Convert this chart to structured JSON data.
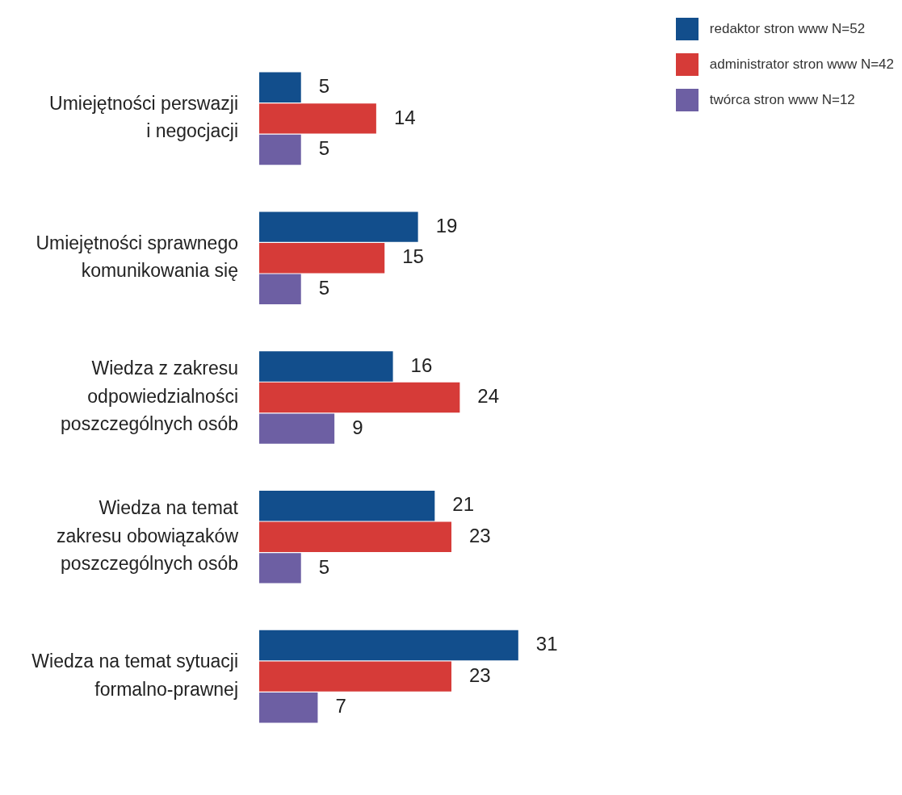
{
  "chart_data": {
    "type": "bar",
    "orientation": "horizontal",
    "categories": [
      "Umiejętności perswazji\ni negocjacji",
      "Umiejętności sprawnego\nkomunikowania się",
      "Wiedza z zakresu\nodpowiedzialności\nposzczególnych osób",
      "Wiedza na temat\nzakresu obowiązaków\nposzczególnych osób",
      "Wiedza na temat sytuacji\nformalno-prawnej"
    ],
    "series": [
      {
        "name": "redaktor stron www N=52",
        "color": "#124e8c",
        "values": [
          5,
          19,
          16,
          21,
          31
        ]
      },
      {
        "name": "administrator stron www N=42",
        "color": "#d63b38",
        "values": [
          14,
          15,
          24,
          23,
          23
        ]
      },
      {
        "name": "twórca stron www N=12",
        "color": "#6d5fa3",
        "values": [
          5,
          5,
          9,
          5,
          7
        ]
      }
    ],
    "data_labels": true,
    "legend": "top right"
  }
}
